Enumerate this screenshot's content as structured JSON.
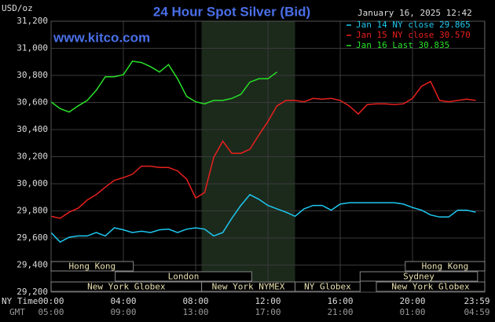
{
  "chart_data": {
    "type": "line",
    "title": "24 Hour Spot Silver (Bid)",
    "watermark": "www.kitco.com",
    "y_label": "USD/oz",
    "timestamp": "January 16, 2025 12:42",
    "x_row_label": "NY Time",
    "x2_row_label": "GMT",
    "x": [
      0,
      0.5,
      1,
      1.5,
      2,
      2.5,
      3,
      3.5,
      4,
      4.5,
      5,
      5.5,
      6,
      6.5,
      7,
      7.5,
      8,
      8.5,
      9,
      9.5,
      10,
      10.5,
      11,
      11.5,
      12,
      12.5,
      13,
      13.5,
      14,
      14.5,
      15,
      15.5,
      16,
      16.5,
      17,
      17.5,
      18,
      18.5,
      19,
      19.5,
      20,
      20.5,
      21,
      21.5,
      22,
      22.5,
      23,
      23.5
    ],
    "series": [
      {
        "name": "Jan 14 NY close 29.865",
        "color": "#1ec8f0",
        "values": [
          29640,
          29570,
          29605,
          29615,
          29615,
          29640,
          29615,
          29675,
          29660,
          29640,
          29650,
          29640,
          29660,
          29665,
          29640,
          29665,
          29675,
          29665,
          29615,
          29640,
          29745,
          29840,
          29920,
          29885,
          29840,
          29815,
          29790,
          29760,
          29815,
          29840,
          29840,
          29805,
          29850,
          29860,
          29860,
          29860,
          29860,
          29860,
          29860,
          29850,
          29825,
          29805,
          29770,
          29755,
          29755,
          29805,
          29805,
          29790
        ]
      },
      {
        "name": "Jan 15 NY close 30.570",
        "color": "#e8201e",
        "values": [
          29760,
          29745,
          29790,
          29820,
          29880,
          29920,
          29975,
          30025,
          30045,
          30070,
          30130,
          30130,
          30120,
          30120,
          30095,
          30035,
          29895,
          29935,
          30195,
          30315,
          30225,
          30225,
          30255,
          30360,
          30460,
          30575,
          30615,
          30615,
          30605,
          30630,
          30625,
          30630,
          30615,
          30575,
          30515,
          30585,
          30590,
          30590,
          30585,
          30590,
          30630,
          30720,
          30755,
          30615,
          30605,
          30615,
          30625,
          30615
        ]
      },
      {
        "name": "Jan 16 Last 30.835",
        "color": "#28e028",
        "values": [
          30605,
          30555,
          30530,
          30575,
          30615,
          30690,
          30790,
          30790,
          30805,
          30905,
          30895,
          30865,
          30825,
          30880,
          30775,
          30645,
          30605,
          30590,
          30615,
          30615,
          30630,
          30660,
          30750,
          30775,
          30775,
          30825,
          null,
          null,
          null,
          null,
          null,
          null,
          null,
          null,
          null,
          null,
          null,
          null,
          null,
          null,
          null,
          null,
          null,
          null,
          null,
          null,
          null,
          null
        ]
      }
    ],
    "xlim": [
      0,
      24
    ],
    "ylim": [
      29200,
      31200
    ],
    "yticks": [
      {
        "value": 29200,
        "label": "29,200"
      },
      {
        "value": 29400,
        "label": "29,400"
      },
      {
        "value": 29600,
        "label": "29,600"
      },
      {
        "value": 29800,
        "label": "29,800"
      },
      {
        "value": 30000,
        "label": "30,000"
      },
      {
        "value": 30200,
        "label": "30,200"
      },
      {
        "value": 30400,
        "label": "30,400"
      },
      {
        "value": 30600,
        "label": "30,600"
      },
      {
        "value": 30800,
        "label": "30,800"
      },
      {
        "value": 31000,
        "label": "31,000"
      },
      {
        "value": 31200,
        "label": "31,200"
      }
    ],
    "xticks": [
      {
        "value": 0,
        "label": "00:00"
      },
      {
        "value": 4,
        "label": "04:00"
      },
      {
        "value": 8,
        "label": "08:00"
      },
      {
        "value": 12,
        "label": "12:00"
      },
      {
        "value": 16,
        "label": "16:00"
      },
      {
        "value": 20,
        "label": "20:00"
      },
      {
        "value": 23.983,
        "label": "23:59"
      }
    ],
    "x2ticks": [
      {
        "value": 0,
        "label": "05:00"
      },
      {
        "value": 4,
        "label": "09:00"
      },
      {
        "value": 8,
        "label": "13:00"
      },
      {
        "value": 12,
        "label": "17:00"
      },
      {
        "value": 16,
        "label": "21:00"
      },
      {
        "value": 20,
        "label": "01:00"
      },
      {
        "value": 23.983,
        "label": "04:59"
      }
    ],
    "highlight": {
      "start": 8.33,
      "end": 13.5
    },
    "sessions": [
      {
        "name": "Hong Kong",
        "row": 1,
        "start": 0,
        "end": 4.55
      },
      {
        "name": "Hong Kong",
        "row": 1,
        "start": 19.6,
        "end": 24
      },
      {
        "name": "London",
        "row": 2,
        "start": 3.55,
        "end": 11.1
      },
      {
        "name": "Sydney",
        "row": 2,
        "start": 17.1,
        "end": 23.6
      },
      {
        "name": "New York Globex",
        "row": 3,
        "start": 0,
        "end": 8.33
      },
      {
        "name": "New York NYMEX",
        "row": 3,
        "start": 8.33,
        "end": 13.5
      },
      {
        "name": "NY Globex",
        "row": 3,
        "start": 13.5,
        "end": 17.1
      },
      {
        "name": "New York Globex",
        "row": 3,
        "start": 18,
        "end": 24
      }
    ],
    "grid": true
  }
}
